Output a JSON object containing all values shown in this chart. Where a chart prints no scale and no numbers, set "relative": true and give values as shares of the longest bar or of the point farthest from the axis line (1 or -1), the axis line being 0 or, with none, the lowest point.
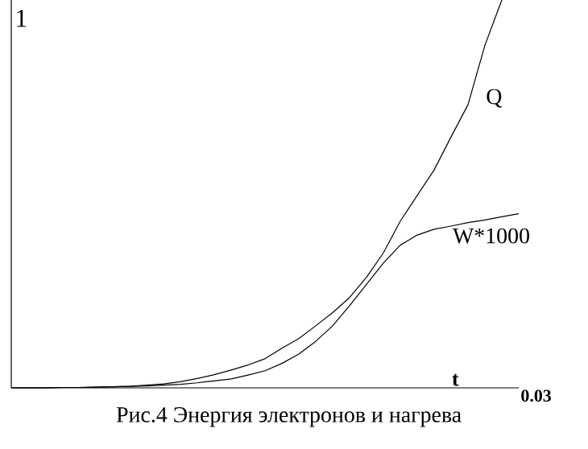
{
  "chart_data": {
    "type": "line",
    "title": "Рис.4 Энергия электронов и нагрева",
    "xlabel": "t",
    "relative": true,
    "annotations": [
      "1",
      "0.03"
    ],
    "legend": false,
    "marker": "none",
    "line_style": "solid",
    "categories": [
      null,
      null,
      null,
      null,
      null,
      null,
      null,
      null,
      null,
      null,
      null,
      null,
      null,
      null,
      null,
      null,
      null,
      null,
      null,
      null,
      null,
      null,
      null,
      null,
      null,
      null,
      null,
      null,
      null,
      null,
      null
    ],
    "series": [
      {
        "name": "Q",
        "color": "#000000",
        "values": [
          0,
          0,
          0,
          0.001,
          0.001,
          0.002,
          0.003,
          0.004,
          0.007,
          0.01,
          0.016,
          0.024,
          0.034,
          0.046,
          0.059,
          0.075,
          0.102,
          0.127,
          0.16,
          0.194,
          0.233,
          0.285,
          0.348,
          0.43,
          0.496,
          0.562,
          0.647,
          0.73,
          0.883,
          1,
          null
        ]
      },
      {
        "name": "W*1000",
        "color": "#000000",
        "values": [
          0,
          0,
          0,
          0.001,
          0.001,
          0.002,
          0.003,
          0.004,
          0.005,
          0.007,
          0.009,
          0.013,
          0.018,
          0.023,
          0.033,
          0.044,
          0.063,
          0.087,
          0.12,
          0.16,
          0.212,
          0.267,
          0.322,
          0.368,
          0.394,
          0.409,
          0.417,
          0.426,
          0.433,
          0.441,
          0.449
        ]
      }
    ]
  }
}
